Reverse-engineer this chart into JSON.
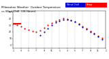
{
  "title": "Milwaukee Weather Outdoor Temperature vs Wind Chill (24 Hours)",
  "title_fontsize": 3.2,
  "bg_color": "#ffffff",
  "plot_bg": "#ffffff",
  "legend_temp_color": "#ff0000",
  "legend_windchill_color": "#0000cc",
  "ylim": [
    -5,
    52
  ],
  "xlim": [
    0,
    24
  ],
  "ytick_values": [
    0,
    10,
    20,
    30,
    40,
    50
  ],
  "ytick_labels": [
    "0",
    "10",
    "20",
    "30",
    "40",
    "50"
  ],
  "xtick_positions": [
    0,
    2,
    4,
    6,
    8,
    10,
    12,
    14,
    16,
    18,
    20,
    22,
    24
  ],
  "xtick_labels": [
    "1",
    "3",
    "5",
    "7",
    "9",
    "11",
    "1",
    "3",
    "5",
    "7",
    "9",
    "11",
    "1"
  ],
  "grid_color": "#aaaaaa",
  "temp_color": "#ff0000",
  "wc_color": "#0000cc",
  "dot_size": 2.5,
  "temp_data_x": [
    0,
    0.5,
    1,
    2,
    3,
    4,
    5,
    6,
    7,
    8,
    9,
    10,
    11,
    12,
    13,
    14,
    15,
    16,
    17,
    18,
    19,
    20,
    21,
    22,
    23
  ],
  "temp_data_y": [
    32,
    32,
    30,
    28,
    25,
    23,
    21,
    20,
    22,
    26,
    30,
    33,
    36,
    38,
    40,
    39,
    37,
    35,
    32,
    28,
    25,
    21,
    18,
    14,
    11
  ],
  "wc_data_x": [
    7,
    8,
    9,
    10,
    11,
    12,
    13,
    14,
    15,
    16,
    17,
    18,
    19,
    20,
    21,
    22,
    23
  ],
  "wc_data_y": [
    15,
    20,
    25,
    30,
    34,
    36,
    38,
    38,
    37,
    35,
    31,
    27,
    24,
    20,
    17,
    13,
    9
  ],
  "flat_line_x": [
    0,
    2
  ],
  "flat_line_y": [
    32,
    32
  ]
}
